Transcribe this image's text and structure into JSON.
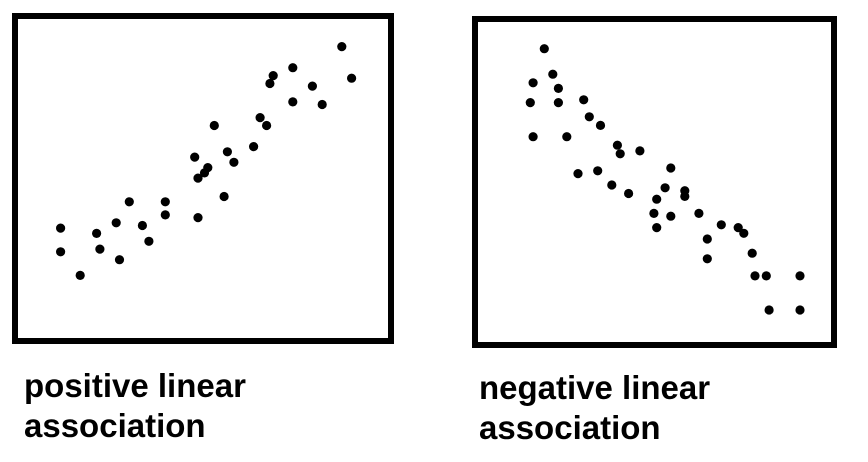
{
  "chart_data": [
    {
      "type": "scatter",
      "title": "",
      "caption": [
        "positive linear",
        "association"
      ],
      "xlabel": "",
      "ylabel": "",
      "xlim": [
        0,
        100
      ],
      "ylim": [
        0,
        100
      ],
      "grid": false,
      "x": [
        6,
        6,
        12,
        18,
        17,
        23,
        24,
        27,
        31,
        33,
        38,
        38,
        47,
        48,
        50,
        48,
        53,
        51,
        56,
        59,
        57,
        65,
        67,
        69,
        71,
        70,
        77,
        77,
        86,
        83,
        92,
        95
      ],
      "y": [
        30,
        21,
        12,
        22,
        28,
        32,
        18,
        40,
        31,
        25,
        40,
        35,
        57,
        49,
        51,
        34,
        69,
        53,
        42,
        55,
        59,
        61,
        72,
        69,
        88,
        85,
        91,
        78,
        77,
        84,
        99,
        87
      ]
    },
    {
      "type": "scatter",
      "title": "",
      "caption": [
        "negative linear",
        "association"
      ],
      "xlabel": "",
      "ylabel": "",
      "xlim": [
        0,
        100
      ],
      "ylim": [
        0,
        100
      ],
      "grid": false,
      "x": [
        14,
        10,
        9,
        10,
        19,
        17,
        22,
        19,
        30,
        28,
        26,
        34,
        33,
        40,
        41,
        38,
        44,
        48,
        54,
        53,
        57,
        59,
        54,
        59,
        64,
        64,
        69,
        72,
        72,
        77,
        83,
        85,
        88,
        89,
        93,
        94,
        105,
        105
      ],
      "y": [
        98,
        86,
        79,
        67,
        79,
        89,
        67,
        84,
        74,
        80,
        54,
        71,
        55,
        64,
        61,
        50,
        47,
        62,
        45,
        40,
        49,
        56,
        35,
        39,
        46,
        48,
        40,
        31,
        24,
        36,
        35,
        33,
        26,
        18,
        18,
        6,
        6,
        18
      ]
    }
  ],
  "colors": {
    "point": "#000000",
    "frame": "#000000",
    "background": "#ffffff"
  }
}
